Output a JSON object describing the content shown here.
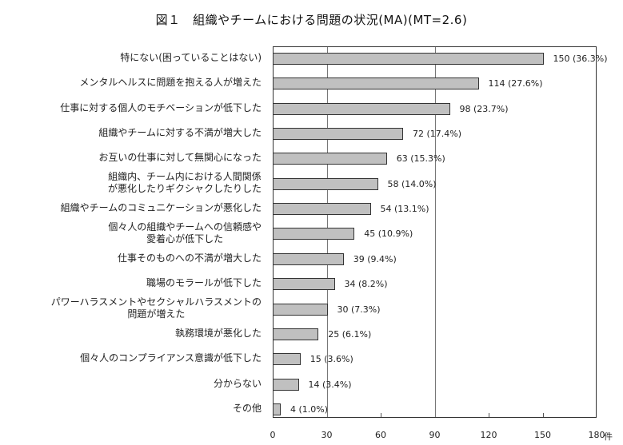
{
  "title": "図１　組織やチームにおける問題の状況(MA)(MT=2.6)",
  "chart_data": {
    "type": "bar",
    "orientation": "horizontal",
    "title": "図１　組織やチームにおける問題の状況(MA)(MT=2.6)",
    "xlabel": "件",
    "ylabel": "",
    "xlim": [
      0,
      180
    ],
    "xticks": [
      0,
      30,
      60,
      90,
      120,
      150,
      180
    ],
    "gridlines_at": [
      30,
      90
    ],
    "categories": [
      "特にない(困っていることはない)",
      "メンタルヘルスに問題を抱える人が増えた",
      "仕事に対する個人のモチベーションが低下した",
      "組織やチームに対する不満が増大した",
      "お互いの仕事に対して無関心になった",
      "組織内、チーム内における人間関係が悪化したりギクシャクしたりした",
      "組織やチームのコミュニケーションが悪化した",
      "個々人の組織やチームへの信頼感や愛着心が低下した",
      "仕事そのものへの不満が増大した",
      "職場のモラールが低下した",
      "パワーハラスメントやセクシャルハラスメントの問題が増えた",
      "執務環境が悪化した",
      "個々人のコンプライアンス意識が低下した",
      "分からない",
      "その他"
    ],
    "values": [
      150,
      114,
      98,
      72,
      63,
      58,
      54,
      45,
      39,
      34,
      30,
      25,
      15,
      14,
      4
    ],
    "percentages": [
      36.3,
      27.6,
      23.7,
      17.4,
      15.3,
      14.0,
      13.1,
      10.9,
      9.4,
      8.2,
      7.3,
      6.1,
      3.6,
      3.4,
      1.0
    ],
    "bar_color": "#c0c0c0",
    "bar_edge_color": "#333333"
  },
  "rows": [
    {
      "lines": [
        "特にない(困っていることはない)"
      ],
      "label": "150 (36.3%)"
    },
    {
      "lines": [
        "メンタルヘルスに問題を抱える人が増えた"
      ],
      "label": "114 (27.6%)"
    },
    {
      "lines": [
        "仕事に対する個人のモチベーションが低下した"
      ],
      "label": "98 (23.7%)"
    },
    {
      "lines": [
        "組織やチームに対する不満が増大した"
      ],
      "label": "72 (17.4%)"
    },
    {
      "lines": [
        "お互いの仕事に対して無関心になった"
      ],
      "label": "63 (15.3%)"
    },
    {
      "lines": [
        "組織内、チーム内における人間関係",
        "が悪化したりギクシャクしたりした"
      ],
      "label": "58 (14.0%)"
    },
    {
      "lines": [
        "組織やチームのコミュニケーションが悪化した"
      ],
      "label": "54 (13.1%)"
    },
    {
      "lines": [
        "個々人の組織やチームへの信頼感や",
        "愛着心が低下した"
      ],
      "label": "45 (10.9%)"
    },
    {
      "lines": [
        "仕事そのものへの不満が増大した"
      ],
      "label": "39 (9.4%)"
    },
    {
      "lines": [
        "職場のモラールが低下した"
      ],
      "label": "34 (8.2%)"
    },
    {
      "lines": [
        "パワーハラスメントやセクシャルハラスメントの",
        "問題が増えた"
      ],
      "label": "30 (7.3%)"
    },
    {
      "lines": [
        "執務環境が悪化した"
      ],
      "label": "25 (6.1%)"
    },
    {
      "lines": [
        "個々人のコンプライアンス意識が低下した"
      ],
      "label": "15 (3.6%)"
    },
    {
      "lines": [
        "分からない"
      ],
      "label": "14 (3.4%)"
    },
    {
      "lines": [
        "その他"
      ],
      "label": "4 (1.0%)"
    }
  ],
  "axis": {
    "tick_labels": [
      "0",
      "30",
      "60",
      "90",
      "120",
      "150",
      "180"
    ],
    "unit": "件"
  }
}
